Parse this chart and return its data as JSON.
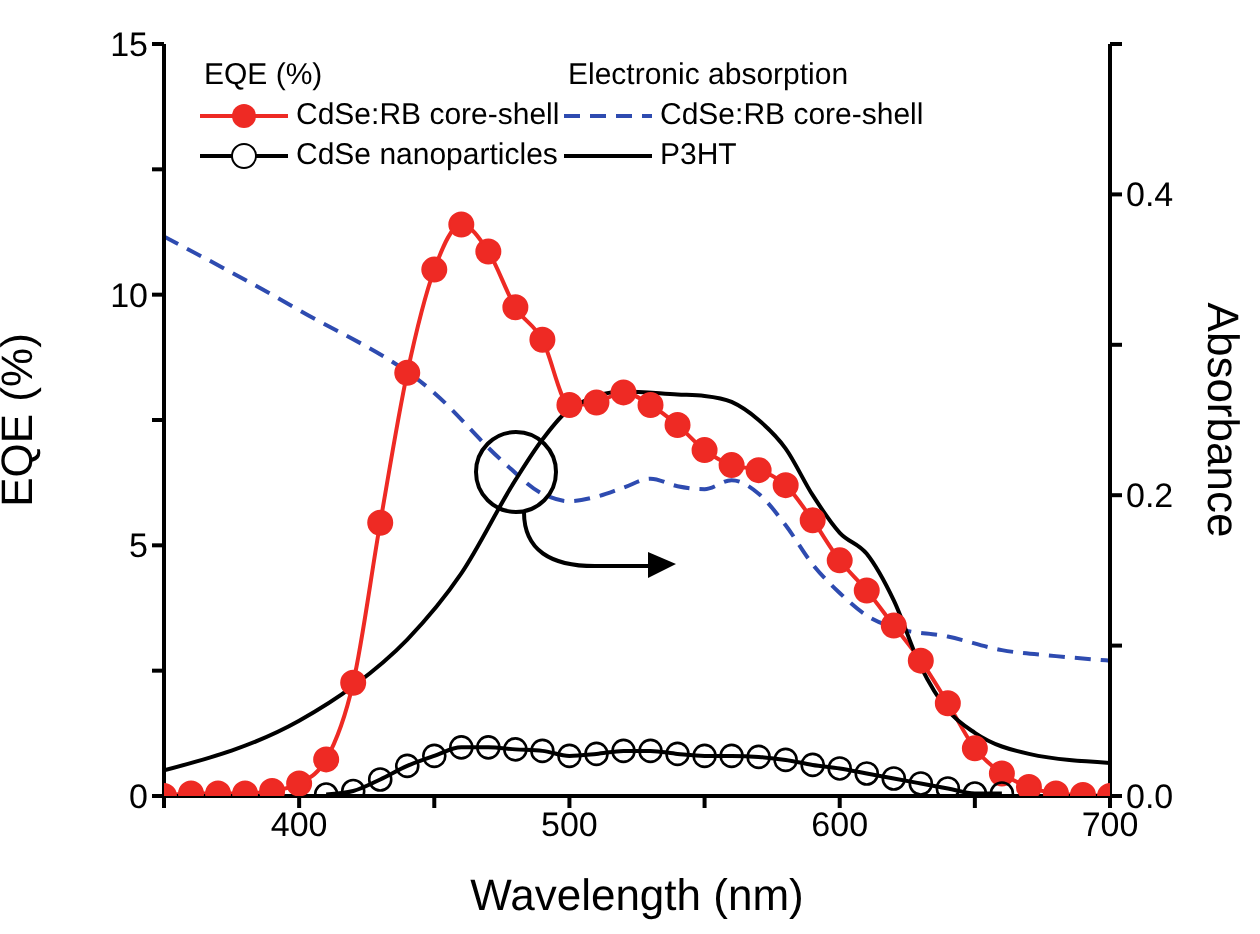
{
  "chart_data": {
    "type": "line",
    "xlabel": "Wavelength (nm)",
    "ylabel": "EQE (%)",
    "y2label": "Absorbance",
    "xlim": [
      350,
      700
    ],
    "xticks": [
      {
        "value": 350,
        "label": null
      },
      400,
      {
        "value": 450,
        "label": null
      },
      500,
      {
        "value": 550,
        "label": null
      },
      600,
      {
        "value": 650,
        "label": null
      },
      700
    ],
    "ylim": [
      0,
      15
    ],
    "yticks": [
      0,
      {
        "value": 2.5,
        "label": null
      },
      5,
      {
        "value": 7.5,
        "label": null
      },
      10,
      {
        "value": 12.5,
        "label": null
      },
      15
    ],
    "y2lim": [
      0,
      0.5
    ],
    "y2ticks": [
      {
        "value": 0,
        "label": "0.0"
      },
      {
        "value": 0.1,
        "label": null
      },
      0.2,
      {
        "value": 0.3,
        "label": null
      },
      0.4,
      {
        "value": 0.5,
        "label": null
      }
    ],
    "legend": "top",
    "grid": false,
    "annotations": [
      "EQE (%)",
      "Electronic absorption"
    ],
    "series": [
      {
        "name": "CdSe:RB core-shell",
        "color": "#ee2a24",
        "marker": "circle",
        "axis": "y",
        "x": [
          350,
          360,
          370,
          380,
          390,
          400,
          410,
          420,
          430,
          440,
          450,
          460,
          470,
          480,
          490,
          500,
          510,
          520,
          530,
          540,
          550,
          560,
          570,
          580,
          590,
          600,
          610,
          620,
          630,
          640,
          650,
          660,
          670,
          680,
          690,
          700
        ],
        "values": [
          0,
          0.05,
          0.05,
          0.05,
          0.1,
          0.25,
          0.73,
          2.26,
          5.45,
          8.44,
          10.5,
          11.4,
          10.86,
          9.75,
          9.1,
          7.8,
          7.85,
          8.05,
          7.8,
          7.4,
          6.9,
          6.6,
          6.5,
          6.2,
          5.5,
          4.7,
          4.1,
          3.4,
          2.7,
          1.85,
          0.95,
          0.45,
          0.18,
          0.05,
          0.02,
          0
        ]
      },
      {
        "name": "CdSe nanoparticles",
        "color": "#000000",
        "marker": "open circle",
        "axis": "y",
        "x": [
          410,
          420,
          430,
          440,
          450,
          460,
          470,
          480,
          490,
          500,
          510,
          520,
          530,
          540,
          550,
          560,
          570,
          580,
          590,
          600,
          610,
          620,
          630,
          640,
          650,
          660
        ],
        "values": [
          0.03,
          0.1,
          0.33,
          0.6,
          0.8,
          0.97,
          0.97,
          0.93,
          0.9,
          0.8,
          0.84,
          0.9,
          0.9,
          0.84,
          0.8,
          0.8,
          0.78,
          0.72,
          0.62,
          0.55,
          0.45,
          0.35,
          0.25,
          0.15,
          0.05,
          0.05
        ]
      },
      {
        "name": "CdSe:RB core-shell",
        "color": "#2e4bb0",
        "marker": "none",
        "line_style": "dashed",
        "axis": "y2",
        "x": [
          350,
          400,
          450,
          475,
          490,
          500,
          510,
          520,
          530,
          540,
          550,
          560,
          570,
          580,
          590,
          600,
          610,
          620,
          640,
          660,
          680,
          700
        ],
        "values": [
          0.372,
          0.323,
          0.268,
          0.223,
          0.201,
          0.196,
          0.199,
          0.205,
          0.211,
          0.206,
          0.204,
          0.21,
          0.201,
          0.18,
          0.154,
          0.135,
          0.12,
          0.112,
          0.106,
          0.097,
          0.093,
          0.09
        ]
      },
      {
        "name": "P3HT",
        "color": "#000000",
        "marker": "none",
        "line_style": "solid",
        "axis": "y2",
        "x": [
          350,
          400,
          420,
          440,
          460,
          480,
          490,
          500,
          520,
          540,
          550,
          560,
          570,
          580,
          590,
          600,
          610,
          620,
          630,
          640,
          650,
          670,
          700
        ],
        "values": [
          0.017,
          0.05,
          0.073,
          0.104,
          0.148,
          0.21,
          0.237,
          0.257,
          0.269,
          0.267,
          0.266,
          0.262,
          0.25,
          0.231,
          0.2,
          0.175,
          0.161,
          0.13,
          0.086,
          0.057,
          0.042,
          0.028,
          0.022
        ]
      }
    ]
  }
}
